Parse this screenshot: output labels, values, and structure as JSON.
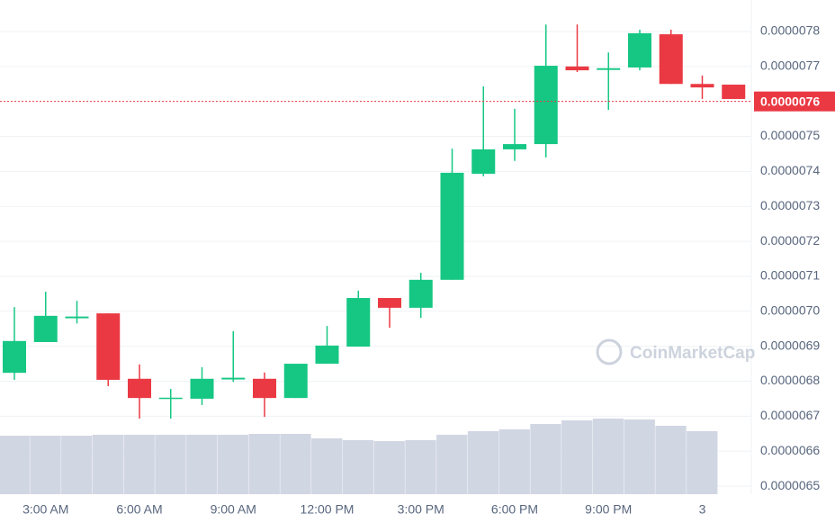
{
  "chart_data": {
    "type": "candlestick",
    "categories": [
      null,
      "3:00 AM",
      null,
      null,
      "6:00 AM",
      null,
      null,
      "9:00 AM",
      null,
      null,
      "12:00 PM",
      null,
      null,
      "3:00 PM",
      null,
      null,
      "6:00 PM",
      null,
      null,
      "9:00 PM",
      null,
      null,
      "3",
      null
    ],
    "open": [
      6.824e-06,
      6.912e-06,
      6.98e-06,
      6.994e-06,
      6.807e-06,
      6.75e-06,
      6.75e-06,
      6.805e-06,
      6.807e-06,
      6.752e-06,
      6.85e-06,
      6.899e-06,
      7.038e-06,
      7.01e-06,
      7.09e-06,
      7.393e-06,
      7.463e-06,
      7.478e-06,
      7.7e-06,
      7.69e-06,
      7.697e-06,
      7.792e-06,
      7.65e-06,
      7.648e-06
    ],
    "high": [
      7.012e-06,
      7.056e-06,
      7.03e-06,
      6.994e-06,
      6.848e-06,
      6.778e-06,
      6.84e-06,
      6.943e-06,
      6.825e-06,
      6.85e-06,
      6.958e-06,
      7.059e-06,
      7.038e-06,
      7.11e-06,
      7.465e-06,
      7.643e-06,
      7.579e-06,
      7.82e-06,
      7.82e-06,
      7.74e-06,
      7.805e-06,
      7.805e-06,
      7.674e-06,
      7.648e-06
    ],
    "low": [
      6.804e-06,
      6.912e-06,
      6.965e-06,
      6.786e-06,
      6.693e-06,
      6.693e-06,
      6.732e-06,
      6.798e-06,
      6.698e-06,
      6.752e-06,
      6.85e-06,
      6.899e-06,
      6.953e-06,
      6.981e-06,
      7.09e-06,
      7.386e-06,
      7.43e-06,
      7.44e-06,
      7.684e-06,
      7.576e-06,
      7.689e-06,
      7.65e-06,
      7.607e-06,
      7.607e-06
    ],
    "close": [
      6.915e-06,
      6.987e-06,
      6.985e-06,
      6.804e-06,
      6.752e-06,
      6.753e-06,
      6.807e-06,
      6.81e-06,
      6.752e-06,
      6.85e-06,
      6.902e-06,
      7.038e-06,
      7.01e-06,
      7.09e-06,
      7.396e-06,
      7.463e-06,
      7.478e-06,
      7.702e-06,
      7.689e-06,
      7.695e-06,
      7.795e-06,
      7.65e-06,
      7.64e-06,
      7.607e-06
    ],
    "volume": [
      65,
      65,
      65,
      66,
      66,
      66,
      66,
      66,
      67,
      67,
      62,
      60,
      59,
      60,
      66,
      70,
      72,
      78,
      82,
      84,
      83,
      76,
      70,
      null
    ],
    "up_color": "#16c784",
    "down_color": "#ea3943",
    "volume_color": "#d1d6e3",
    "ylim": [
      6.477e-06,
      7.89e-06
    ],
    "yticks": [
      {
        "value": 7.8e-06,
        "label": "0.0000078"
      },
      {
        "value": 7.7e-06,
        "label": "0.0000077"
      },
      {
        "value": 7.5e-06,
        "label": "0.0000075"
      },
      {
        "value": 7.4e-06,
        "label": "0.0000074"
      },
      {
        "value": 7.3e-06,
        "label": "0.0000073"
      },
      {
        "value": 7.2e-06,
        "label": "0.0000072"
      },
      {
        "value": 7.1e-06,
        "label": "0.0000071"
      },
      {
        "value": 7e-06,
        "label": "0.0000070"
      },
      {
        "value": 6.9e-06,
        "label": "0.0000069"
      },
      {
        "value": 6.8e-06,
        "label": "0.0000068"
      },
      {
        "value": 6.7e-06,
        "label": "0.0000067"
      },
      {
        "value": 6.6e-06,
        "label": "0.0000066"
      },
      {
        "value": 6.5e-06,
        "label": "0.0000065"
      }
    ],
    "current_price": {
      "value": 7.6e-06,
      "label": "0.0000076"
    },
    "grid": true,
    "watermark": "CoinMarketCap"
  }
}
